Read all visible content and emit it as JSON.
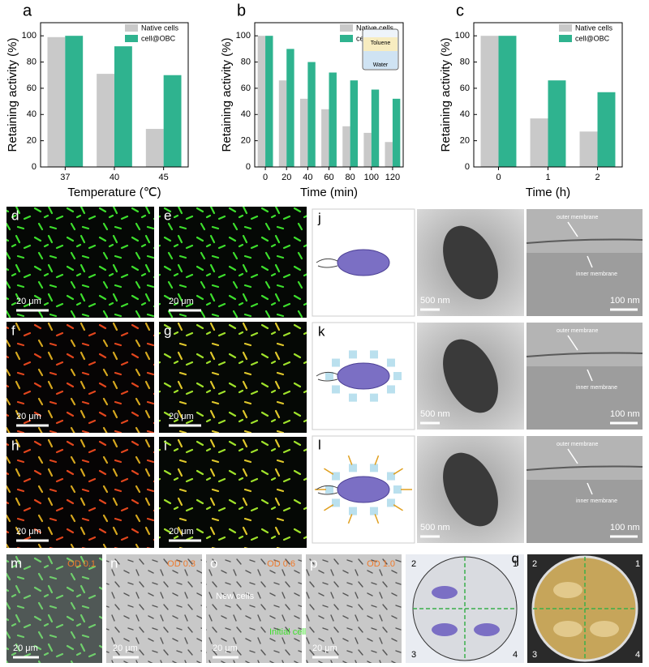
{
  "chart_data": [
    {
      "type": "bar",
      "panel": "a",
      "categories": [
        "37",
        "40",
        "45"
      ],
      "x_label": "Temperature (℃)",
      "y_label": "Retaining activity (%)",
      "series": [
        {
          "name": "Native cells",
          "color": "#c9c9c9",
          "values": [
            99,
            71,
            29
          ]
        },
        {
          "name": "cell@OBC",
          "color": "#2fb38f",
          "values": [
            100,
            92,
            70
          ]
        }
      ],
      "ylim": [
        0,
        110
      ],
      "yticks": [
        0,
        20,
        40,
        60,
        80,
        100
      ],
      "legend": "upper right"
    },
    {
      "type": "bar",
      "panel": "b",
      "categories": [
        "0",
        "20",
        "40",
        "60",
        "80",
        "100",
        "120"
      ],
      "x_label": "Time (min)",
      "y_label": "Retaining activity (%)",
      "inset_labels": [
        "Toluene",
        "Water"
      ],
      "series": [
        {
          "name": "Native cells",
          "color": "#c9c9c9",
          "values": [
            100,
            66,
            52,
            44,
            31,
            26,
            19
          ]
        },
        {
          "name": "cell@OBC",
          "color": "#2fb38f",
          "values": [
            100,
            90,
            80,
            72,
            66,
            59,
            52
          ]
        }
      ],
      "ylim": [
        0,
        110
      ],
      "yticks": [
        0,
        20,
        40,
        60,
        80,
        100
      ],
      "legend": "upper right"
    },
    {
      "type": "bar",
      "panel": "c",
      "categories": [
        "0",
        "1",
        "2"
      ],
      "x_label": "Time (h)",
      "y_label": "Retaining activity (%)",
      "series": [
        {
          "name": "Native cells",
          "color": "#c9c9c9",
          "values": [
            100,
            37,
            27
          ]
        },
        {
          "name": "cell@OBC",
          "color": "#2fb38f",
          "values": [
            100,
            66,
            57
          ]
        }
      ],
      "ylim": [
        0,
        110
      ],
      "yticks": [
        0,
        20,
        40,
        60,
        80,
        100
      ],
      "legend": "upper right"
    }
  ],
  "micrographs": [
    {
      "letter": "d",
      "scale_bar": "20 μm"
    },
    {
      "letter": "e",
      "scale_bar": "20 μm"
    },
    {
      "letter": "f",
      "scale_bar": "20 μm"
    },
    {
      "letter": "g",
      "scale_bar": "20 μm"
    },
    {
      "letter": "h",
      "scale_bar": "20 μm"
    },
    {
      "letter": "i",
      "scale_bar": "20 μm"
    }
  ],
  "tem_rows": [
    {
      "letter": "j",
      "scale_bars": [
        "500 nm",
        "100 nm"
      ],
      "annotations": [
        "outer membrane",
        "inner membrane"
      ]
    },
    {
      "letter": "k",
      "scale_bars": [
        "500 nm",
        "100 nm"
      ],
      "annotations": [
        "outer membrane",
        "inner membrane"
      ]
    },
    {
      "letter": "l",
      "scale_bars": [
        "500 nm",
        "100 nm"
      ],
      "annotations": [
        "outer membrane",
        "inner membrane"
      ]
    }
  ],
  "od_images": [
    {
      "letter": "m",
      "label": "OD 0.1",
      "scale_bar": "20 μm"
    },
    {
      "letter": "n",
      "label": "OD 0.3",
      "scale_bar": "20 μm"
    },
    {
      "letter": "o",
      "label": "OD 0.6",
      "scale_bar": "20 μm",
      "annotations": [
        "New cells",
        "Initial cells"
      ]
    },
    {
      "letter": "p",
      "label": "OD 1.0",
      "scale_bar": "20 μm"
    }
  ],
  "plate": {
    "letter": "q",
    "quadrants": [
      "1",
      "2",
      "3",
      "4"
    ]
  }
}
